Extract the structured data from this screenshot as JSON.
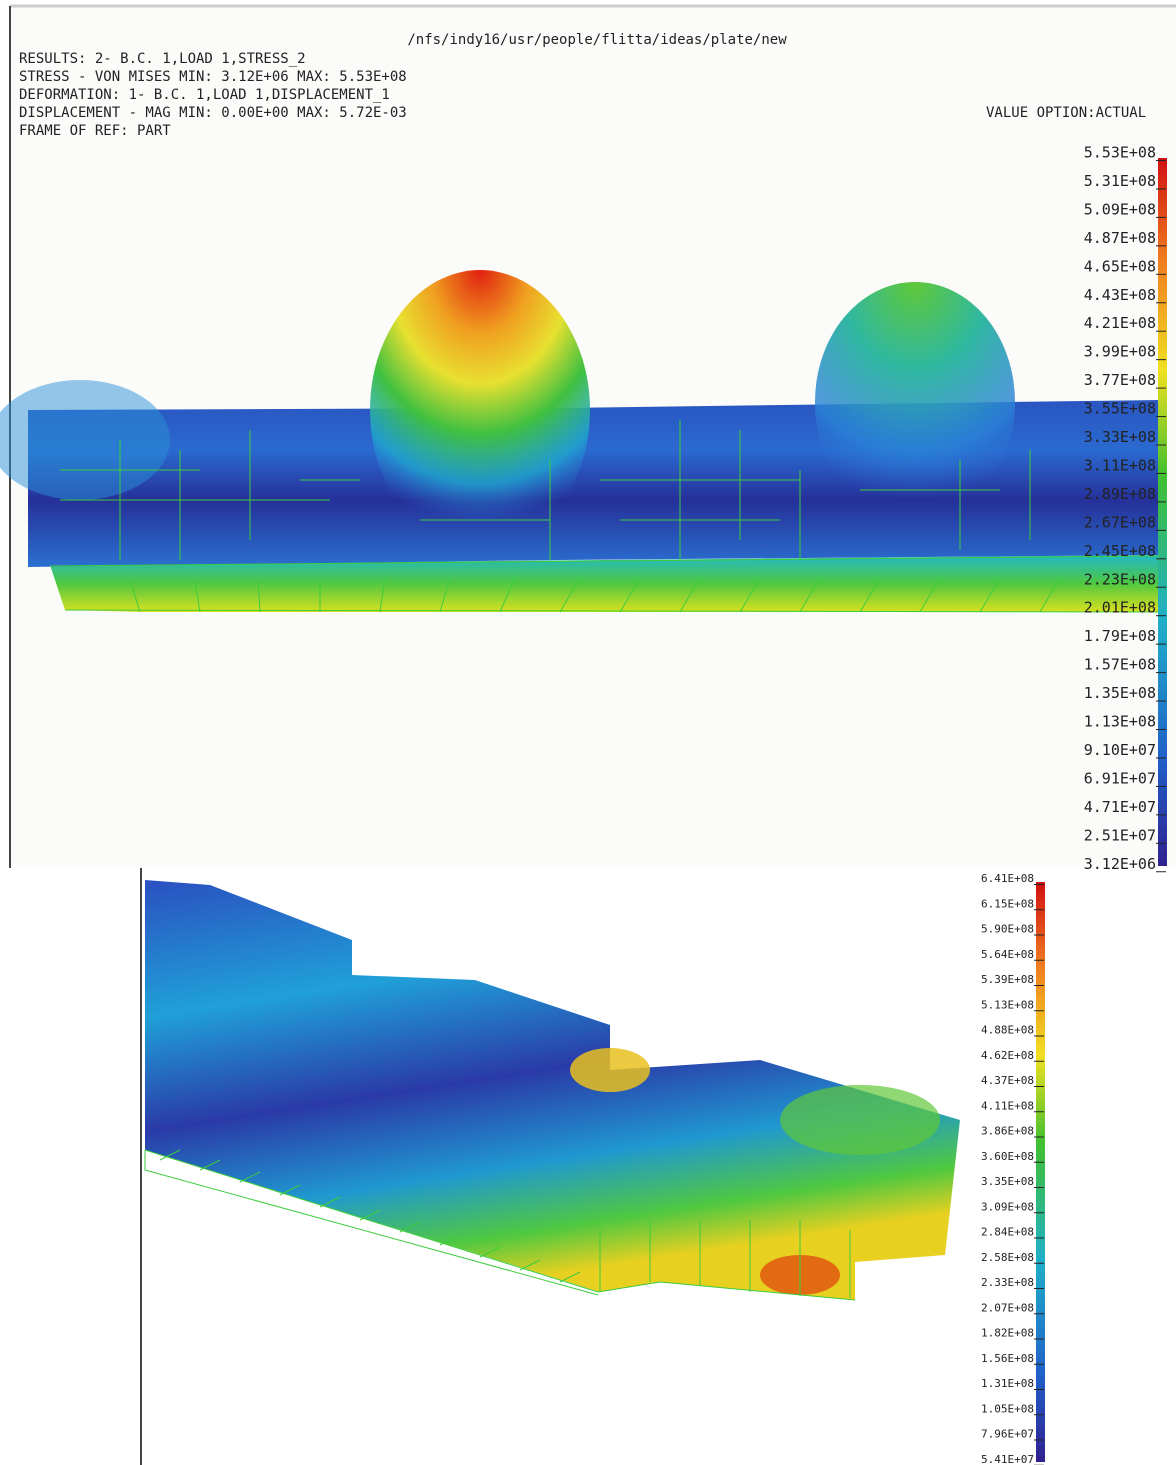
{
  "top_panel": {
    "path": "/nfs/indy16/usr/people/flitta/ideas/plate/new",
    "info_lines": [
      "RESULTS: 2- B.C. 1,LOAD 1,STRESS_2",
      "STRESS - VON MISES MIN: 3.12E+06 MAX: 5.53E+08",
      "DEFORMATION: 1- B.C. 1,LOAD 1,DISPLACEMENT_1",
      "DISPLACEMENT - MAG MIN: 0.00E+00 MAX: 5.72E-03",
      "FRAME OF REF: PART"
    ],
    "value_option": "VALUE OPTION:ACTUAL",
    "legend_labels": [
      "5.53E+08",
      "5.31E+08",
      "5.09E+08",
      "4.87E+08",
      "4.65E+08",
      "4.43E+08",
      "4.21E+08",
      "3.99E+08",
      "3.77E+08",
      "3.55E+08",
      "3.33E+08",
      "3.11E+08",
      "2.89E+08",
      "2.67E+08",
      "2.45E+08",
      "2.23E+08",
      "2.01E+08",
      "1.79E+08",
      "1.57E+08",
      "1.35E+08",
      "1.13E+08",
      "9.10E+07",
      "6.91E+07",
      "4.71E+07",
      "2.51E+07",
      "3.12E+06"
    ]
  },
  "bottom_panel": {
    "legend_labels": [
      "6.41E+08",
      "6.15E+08",
      "5.90E+08",
      "5.64E+08",
      "5.39E+08",
      "5.13E+08",
      "4.88E+08",
      "4.62E+08",
      "4.37E+08",
      "4.11E+08",
      "3.86E+08",
      "3.60E+08",
      "3.35E+08",
      "3.09E+08",
      "2.84E+08",
      "2.58E+08",
      "2.33E+08",
      "2.07E+08",
      "1.82E+08",
      "1.56E+08",
      "1.31E+08",
      "1.05E+08",
      "7.96E+07",
      "5.41E+07"
    ]
  }
}
